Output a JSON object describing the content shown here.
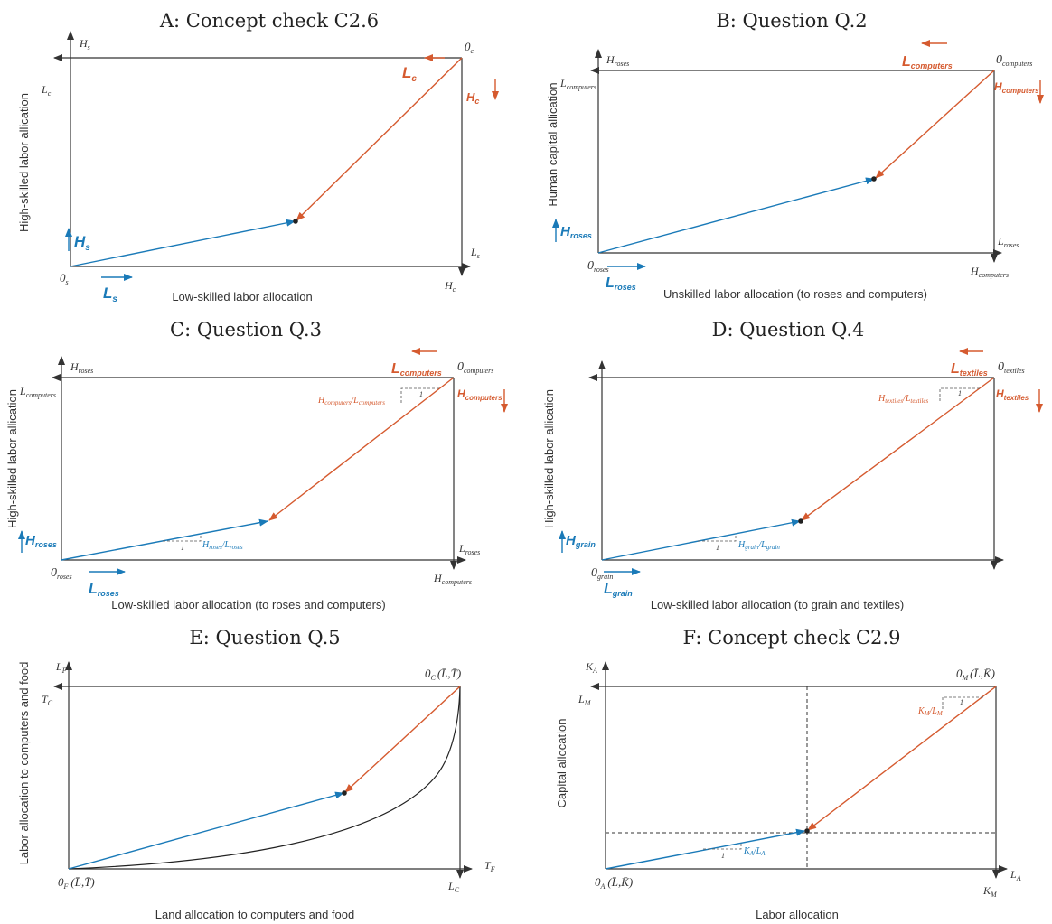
{
  "panels": {
    "A": {
      "title": "A: Concept check C2.6",
      "xlabel": "Low-skilled labor allocation",
      "ylabel": "High-skilled labor allication",
      "origin_bl": "0",
      "origin_bl_sub": "s",
      "origin_tr": "0",
      "origin_tr_sub": "c",
      "lab_Hs_top": "H",
      "lab_Hs_top_sub": "s",
      "lab_Lc_left": "L",
      "lab_Lc_left_sub": "c",
      "lab_Ls_right": "L",
      "lab_Ls_right_sub": "s",
      "lab_Hc_bottom": "H",
      "lab_Hc_bottom_sub": "c",
      "arrow_Lc": "L",
      "arrow_Lc_sub": "c",
      "arrow_Hc": "H",
      "arrow_Hc_sub": "c",
      "arrow_Hs": "H",
      "arrow_Hs_sub": "s",
      "arrow_Ls": "L",
      "arrow_Ls_sub": "s"
    },
    "B": {
      "title": "B: Question Q.2",
      "xlabel": "Unskilled labor allocation (to roses and computers)",
      "ylabel": "Human capital  allication",
      "origin_bl": "0",
      "origin_bl_sub": "roses",
      "origin_tr": "0",
      "origin_tr_sub": "computers",
      "lab_top": "H",
      "lab_top_sub": "roses",
      "lab_left": "L",
      "lab_left_sub": "computers",
      "lab_right": "L",
      "lab_right_sub": "roses",
      "lab_bottom": "H",
      "lab_bottom_sub": "computers",
      "arrow_L_orange": "L",
      "arrow_L_orange_sub": "computers",
      "arrow_H_orange": "H",
      "arrow_H_orange_sub": "computers",
      "arrow_H_blue": "H",
      "arrow_H_blue_sub": "roses",
      "arrow_L_blue": "L",
      "arrow_L_blue_sub": "roses"
    },
    "C": {
      "title": "C: Question Q.3",
      "xlabel": "Low-skilled labor allocation (to roses and computers)",
      "ylabel": "High-skilled labor allication",
      "origin_bl": "0",
      "origin_bl_sub": "roses",
      "origin_tr": "0",
      "origin_tr_sub": "computers",
      "lab_top": "H",
      "lab_top_sub": "roses",
      "lab_left": "L",
      "lab_left_sub": "computers",
      "lab_right": "L",
      "lab_right_sub": "roses",
      "lab_bottom": "H",
      "lab_bottom_sub": "computers",
      "arrow_L_orange": "L",
      "arrow_L_orange_sub": "computers",
      "arrow_H_orange": "H",
      "arrow_H_orange_sub": "computers",
      "arrow_H_blue": "H",
      "arrow_H_blue_sub": "roses",
      "arrow_L_blue": "L",
      "arrow_L_blue_sub": "roses",
      "slope_orange": "H",
      "slope_orange_sub1": "computers",
      "slope_orange_mid": "/L",
      "slope_orange_sub2": "computers",
      "slope_blue": "H",
      "slope_blue_sub1": "roses",
      "slope_blue_mid": "/L",
      "slope_blue_sub2": "roses",
      "one": "1"
    },
    "D": {
      "title": "D: Question Q.4",
      "xlabel": "Low-skilled labor allocation (to grain and textiles)",
      "ylabel": "High-skilled labor allication",
      "origin_bl": "0",
      "origin_bl_sub": "grain",
      "origin_tr": "0",
      "origin_tr_sub": "textiles",
      "arrow_L_orange": "L",
      "arrow_L_orange_sub": "textiles",
      "arrow_H_orange": "H",
      "arrow_H_orange_sub": "textiles",
      "arrow_H_blue": "H",
      "arrow_H_blue_sub": "grain",
      "arrow_L_blue": "L",
      "arrow_L_blue_sub": "grain",
      "slope_orange": "H",
      "slope_orange_sub1": "textiles",
      "slope_orange_mid": "/L",
      "slope_orange_sub2": "textiles",
      "slope_blue": "H",
      "slope_blue_sub1": "grain",
      "slope_blue_mid": "/L",
      "slope_blue_sub2": "grain",
      "one": "1"
    },
    "E": {
      "title": "E: Question Q.5",
      "xlabel": "Land allocation to computers and food",
      "ylabel": "Labor allocation to computers and food",
      "origin_bl": "0",
      "origin_bl_sub": "F",
      "origin_bl_tail": "(L̄,T̄)",
      "origin_tr": "0",
      "origin_tr_sub": "C",
      "origin_tr_tail": "(L̄,T̄)",
      "lab_top": "L",
      "lab_top_sub": "F",
      "lab_left": "T",
      "lab_left_sub": "C",
      "lab_right": "T",
      "lab_right_sub": "F",
      "lab_bottom": "L",
      "lab_bottom_sub": "C"
    },
    "F": {
      "title": "F: Concept check C2.9",
      "xlabel": "Labor allocation",
      "ylabel": "Capital allocation",
      "origin_bl": "0",
      "origin_bl_sub": "A",
      "origin_bl_tail": "(L̄,K̄)",
      "origin_tr": "0",
      "origin_tr_sub": "M",
      "origin_tr_tail": "(L̄,K̄)",
      "lab_top": "K",
      "lab_top_sub": "A",
      "lab_left": "L",
      "lab_left_sub": "M",
      "lab_right": "L",
      "lab_right_sub": "A",
      "lab_bottom": "K",
      "lab_bottom_sub": "M",
      "slope_orange": "K",
      "slope_orange_sub1": "M",
      "slope_orange_mid": "/L",
      "slope_orange_sub2": "M",
      "slope_blue": "K",
      "slope_blue_sub1": "A",
      "slope_blue_mid": "/L",
      "slope_blue_sub2": "A",
      "one": "1"
    }
  },
  "colors": {
    "blue": "#1a7ab8",
    "orange": "#d55a2f",
    "ink": "#333333"
  }
}
